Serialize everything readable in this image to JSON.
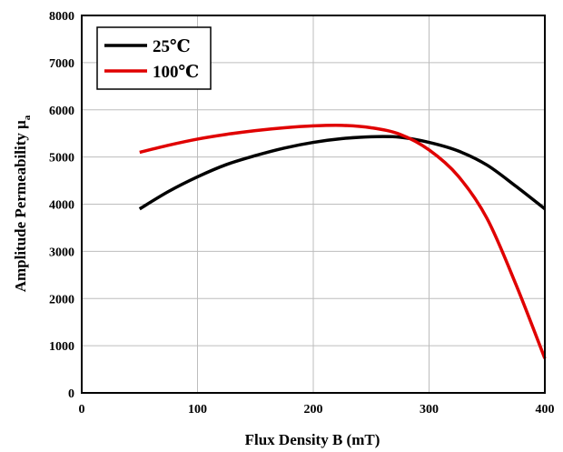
{
  "chart_data": {
    "type": "line",
    "xlabel": "Flux Density B (mT)",
    "ylabel": "Amplitude Permeability μ",
    "ylabel_subscript": "a",
    "xlim": [
      0,
      400
    ],
    "ylim": [
      0,
      8000
    ],
    "xticks": [
      "0",
      "100",
      "200",
      "300",
      "400"
    ],
    "yticks": [
      "0",
      "1000",
      "2000",
      "3000",
      "4000",
      "5000",
      "6000",
      "7000",
      "8000"
    ],
    "grid": true,
    "legend_position": "top-left",
    "series": [
      {
        "name": "25℃",
        "color": "#000000",
        "x": [
          50,
          75,
          100,
          125,
          150,
          175,
          200,
          225,
          250,
          275,
          300,
          325,
          350,
          375,
          400
        ],
        "y": [
          3900,
          4270,
          4580,
          4840,
          5030,
          5190,
          5310,
          5390,
          5430,
          5420,
          5310,
          5130,
          4830,
          4380,
          3900
        ]
      },
      {
        "name": "100℃",
        "color": "#e00000",
        "x": [
          50,
          75,
          100,
          125,
          150,
          175,
          200,
          225,
          250,
          275,
          300,
          325,
          350,
          375,
          400
        ],
        "y": [
          5100,
          5250,
          5380,
          5480,
          5560,
          5620,
          5660,
          5670,
          5620,
          5480,
          5150,
          4600,
          3700,
          2300,
          730
        ]
      }
    ]
  }
}
